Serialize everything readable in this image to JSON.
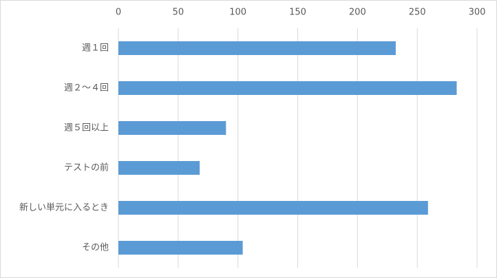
{
  "chart_data": {
    "type": "bar",
    "orientation": "horizontal",
    "categories": [
      "週１回",
      "週２～４回",
      "週５回以上",
      "テストの前",
      "新しい単元に入るとき",
      "その他"
    ],
    "values": [
      232,
      283,
      90,
      68,
      259,
      104
    ],
    "color": "#5b9bd5",
    "xlim": [
      0,
      300
    ],
    "xticks": [
      0,
      50,
      100,
      150,
      200,
      250,
      300
    ],
    "grid": true
  }
}
